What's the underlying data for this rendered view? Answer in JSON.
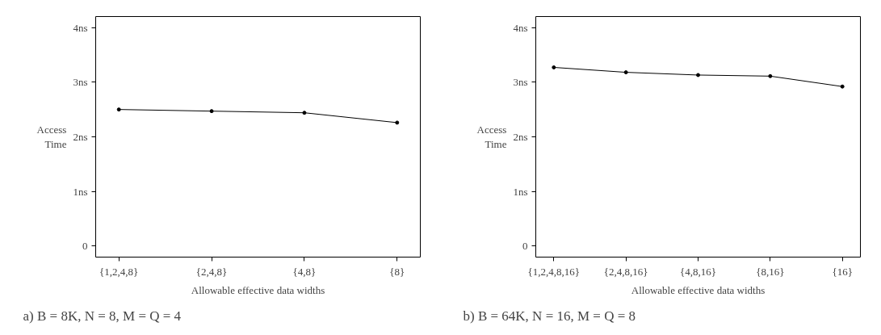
{
  "chart_data": [
    {
      "type": "line",
      "categories": [
        "{1,2,4,8}",
        "{2,4,8}",
        "{4,8}",
        "{8}"
      ],
      "values": [
        2.5,
        2.47,
        2.44,
        2.26
      ],
      "color": "#000000",
      "marker": "circle",
      "line_style": "solid",
      "xlabel": "Allowable effective data widths",
      "ylabel": "Access Time",
      "ylim": [
        -0.2,
        4.2
      ],
      "yticks": [
        {
          "value": 0,
          "label": "0"
        },
        {
          "value": 1,
          "label": "1ns"
        },
        {
          "value": 2,
          "label": "2ns"
        },
        {
          "value": 3,
          "label": "3ns"
        },
        {
          "value": 4,
          "label": "4ns"
        }
      ],
      "grid": false,
      "legend": false,
      "annotations": [
        "a) B = 8K, N = 8, M = Q = 4"
      ]
    },
    {
      "type": "line",
      "categories": [
        "{1,2,4,8,16}",
        "{2,4,8,16}",
        "{4,8,16}",
        "{8,16}",
        "{16}"
      ],
      "values": [
        3.27,
        3.18,
        3.13,
        3.11,
        2.92
      ],
      "color": "#000000",
      "marker": "circle",
      "line_style": "solid",
      "xlabel": "Allowable effective data widths",
      "ylabel": "Access Time",
      "ylim": [
        -0.2,
        4.2
      ],
      "yticks": [
        {
          "value": 0,
          "label": "0"
        },
        {
          "value": 1,
          "label": "1ns"
        },
        {
          "value": 2,
          "label": "2ns"
        },
        {
          "value": 3,
          "label": "3ns"
        },
        {
          "value": 4,
          "label": "4ns"
        }
      ],
      "grid": false,
      "legend": false,
      "annotations": [
        "b) B = 64K, N = 16, M = Q = 8"
      ]
    }
  ]
}
